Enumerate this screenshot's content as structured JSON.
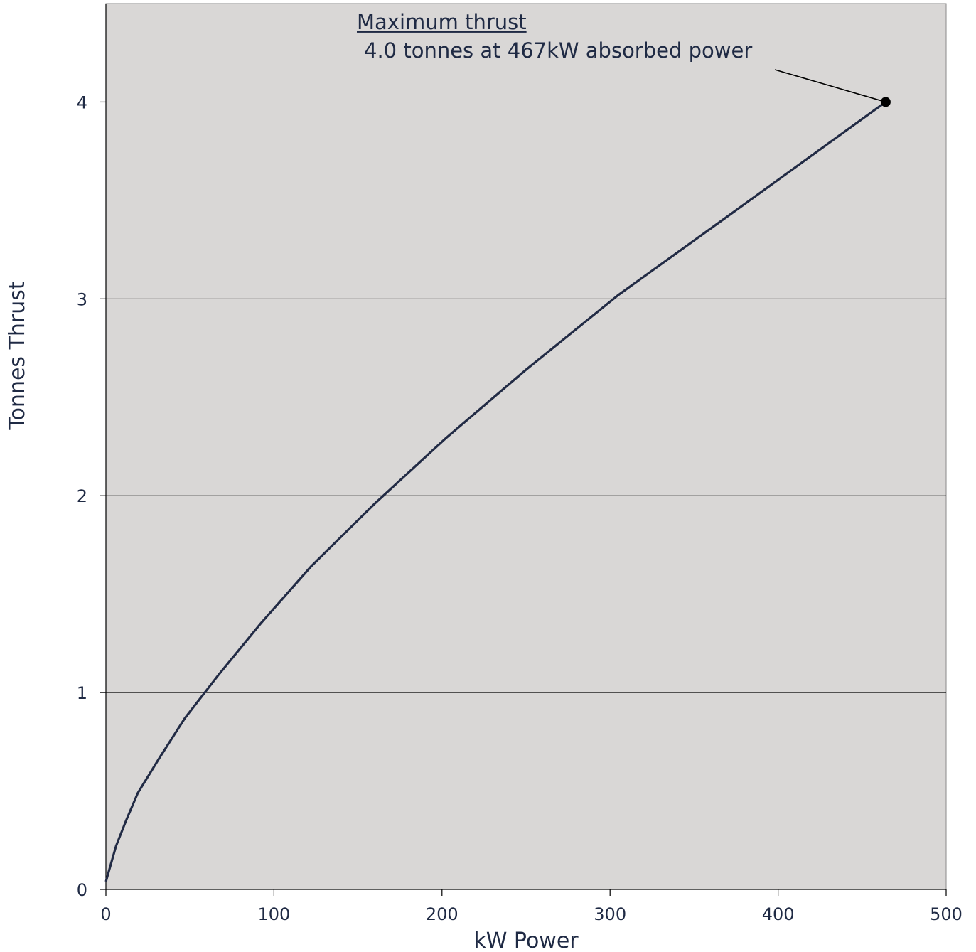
{
  "chart_data": {
    "type": "line",
    "title": "",
    "xlabel": "kW Power",
    "ylabel": "Tonnes Thrust",
    "xlim": [
      0,
      500
    ],
    "ylim": [
      0,
      4.5
    ],
    "x_ticks": [
      0,
      100,
      200,
      300,
      400,
      500
    ],
    "y_ticks": [
      0,
      1,
      2,
      3,
      4
    ],
    "grid": "horizontal",
    "legend": "none",
    "colors": {
      "plot_background": "#d9d7d6",
      "line": "#222b45",
      "gridline": "#000000",
      "text": "#1f2a44"
    },
    "series": [
      {
        "x": [
          0,
          3,
          6,
          12,
          19,
          32,
          47,
          67,
          92,
          122,
          160,
          202,
          250,
          305,
          375,
          464
        ],
        "y": [
          0.04,
          0.13,
          0.22,
          0.35,
          0.49,
          0.67,
          0.87,
          1.09,
          1.35,
          1.64,
          1.96,
          2.29,
          2.64,
          3.02,
          3.45,
          4.0
        ]
      }
    ],
    "annotation": {
      "title": "Maximum thrust",
      "text": "4.0 tonnes at 467kW absorbed power",
      "point": {
        "x": 464,
        "y": 4.0
      }
    }
  }
}
